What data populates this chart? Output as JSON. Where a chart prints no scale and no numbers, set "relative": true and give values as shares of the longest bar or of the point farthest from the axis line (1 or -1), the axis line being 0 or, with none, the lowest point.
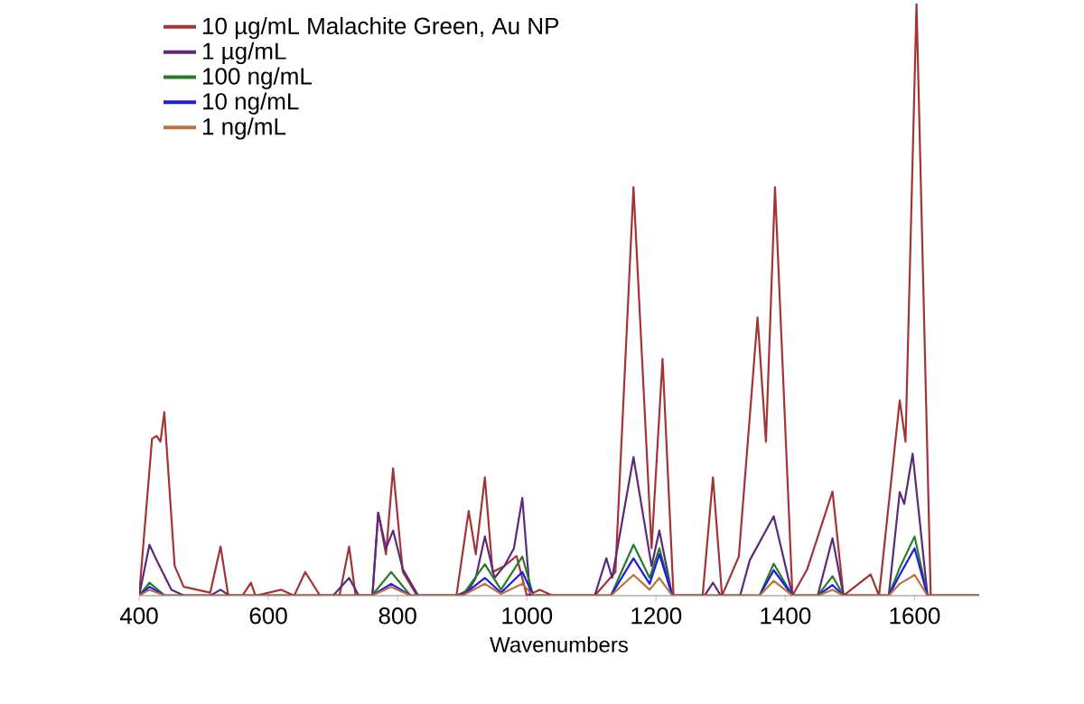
{
  "chart_data": {
    "type": "line",
    "xlabel": "Wavenumbers",
    "relative": true,
    "xlim": [
      400,
      1700
    ],
    "xticks": [
      400,
      600,
      800,
      1000,
      1200,
      1400,
      1600
    ],
    "legend": "top left",
    "grid": false,
    "marker": "none",
    "line_style": "solid",
    "series": [
      {
        "name": "10 µg/mL Malachite Green, Au NP",
        "color": "#a33436",
        "x": [
          400,
          420,
          427,
          433,
          439,
          455,
          469,
          510,
          526,
          538,
          560,
          573,
          580,
          620,
          640,
          657,
          680,
          710,
          725,
          735,
          761,
          770,
          782,
          793,
          808,
          830,
          891,
          910,
          921,
          935,
          947,
          965,
          984,
          1000,
          1020,
          1040,
          1105,
          1137,
          1165,
          1193,
          1210,
          1227,
          1272,
          1288,
          1302,
          1328,
          1357,
          1370,
          1384,
          1411,
          1434,
          1473,
          1490,
          1532,
          1545,
          1577,
          1586,
          1603,
          1625,
          1700
        ],
        "values": [
          0,
          0.265,
          0.27,
          0.26,
          0.31,
          0.05,
          0.015,
          0.005,
          0.083,
          0,
          0,
          0.022,
          0,
          0.01,
          0,
          0.04,
          0,
          0,
          0.083,
          0,
          0,
          0.14,
          0.07,
          0.215,
          0.04,
          0,
          0,
          0.143,
          0.07,
          0.2,
          0.04,
          0.05,
          0.067,
          0,
          0.01,
          0,
          0,
          0.04,
          0.69,
          0.08,
          0.4,
          0,
          0,
          0.2,
          0,
          0.066,
          0.47,
          0.26,
          0.69,
          0,
          0.045,
          0.176,
          0,
          0.036,
          0,
          0.33,
          0.26,
          1,
          0,
          0
        ]
      },
      {
        "name": "1 µg/mL",
        "color": "#5a2a7c",
        "x": [
          400,
          416,
          427,
          450,
          470,
          510,
          526,
          540,
          700,
          725,
          740,
          761,
          770,
          782,
          793,
          808,
          832,
          891,
          910,
          921,
          935,
          950,
          965,
          980,
          993,
          1005,
          1105,
          1123,
          1132,
          1165,
          1193,
          1205,
          1225,
          1275,
          1288,
          1300,
          1330,
          1345,
          1382,
          1411,
          1450,
          1473,
          1490,
          1560,
          1577,
          1584,
          1597,
          1620,
          1700
        ],
        "values": [
          0,
          0.086,
          0.06,
          0.01,
          0,
          0,
          0.01,
          0,
          0,
          0.03,
          0,
          0,
          0.14,
          0.08,
          0.11,
          0.045,
          0,
          0,
          0.01,
          0.03,
          0.1,
          0.03,
          0.05,
          0.08,
          0.165,
          0,
          0,
          0.063,
          0.03,
          0.234,
          0.05,
          0.11,
          0,
          0,
          0.022,
          0,
          0,
          0.06,
          0.134,
          0,
          0,
          0.097,
          0,
          0,
          0.175,
          0.155,
          0.24,
          0,
          0
        ]
      },
      {
        "name": "100 ng/mL",
        "color": "#2a7a2a",
        "x": [
          400,
          416,
          440,
          760,
          790,
          820,
          900,
          935,
          960,
          993,
          1010,
          1130,
          1165,
          1190,
          1205,
          1225,
          1360,
          1382,
          1411,
          1450,
          1473,
          1490,
          1560,
          1577,
          1600,
          1620,
          1700
        ],
        "values": [
          0,
          0.022,
          0,
          0,
          0.04,
          0,
          0,
          0.053,
          0.01,
          0.066,
          0,
          0,
          0.086,
          0.03,
          0.08,
          0,
          0,
          0.054,
          0,
          0,
          0.033,
          0,
          0,
          0.047,
          0.1,
          0,
          0
        ]
      },
      {
        "name": "10 ng/mL",
        "color": "#1c1ce0",
        "x": [
          400,
          416,
          440,
          760,
          790,
          820,
          900,
          935,
          960,
          993,
          1010,
          1130,
          1165,
          1190,
          1205,
          1225,
          1360,
          1382,
          1411,
          1450,
          1473,
          1490,
          1560,
          1577,
          1600,
          1620,
          1700
        ],
        "values": [
          0,
          0.015,
          0,
          0,
          0.02,
          0,
          0,
          0.03,
          0.005,
          0.04,
          0,
          0,
          0.063,
          0.02,
          0.07,
          0,
          0,
          0.043,
          0,
          0,
          0.018,
          0,
          0,
          0.035,
          0.08,
          0,
          0
        ]
      },
      {
        "name": "1 ng/mL",
        "color": "#c0703a",
        "x": [
          400,
          416,
          440,
          760,
          790,
          820,
          900,
          935,
          960,
          993,
          1010,
          1130,
          1165,
          1190,
          1205,
          1225,
          1360,
          1382,
          1411,
          1450,
          1473,
          1490,
          1560,
          1577,
          1600,
          1620,
          1700
        ],
        "values": [
          0,
          0.01,
          0,
          0,
          0.015,
          0,
          0,
          0.02,
          0.003,
          0.02,
          0,
          0,
          0.035,
          0.01,
          0.03,
          0,
          0,
          0.025,
          0,
          0,
          0.01,
          0,
          0,
          0.02,
          0.035,
          0,
          0
        ]
      }
    ]
  }
}
